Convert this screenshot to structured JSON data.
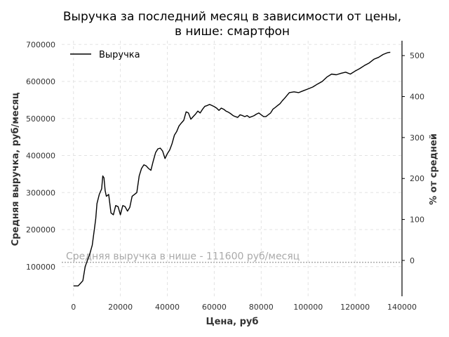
{
  "chart_data": {
    "type": "line",
    "title_line1": "Выручка за последний месяц в зависимости от цены,",
    "title_line2": "в нише: смартфон",
    "xlabel": "Цена, руб",
    "ylabel": "Средняя выручка, руб/месяц",
    "y2label": "% от средней",
    "xlim": [
      -5000,
      140000
    ],
    "ylim": [
      20000,
      710000
    ],
    "y2lim": [
      -87.5,
      536.3
    ],
    "x_ticks": [
      0,
      20000,
      40000,
      60000,
      80000,
      100000,
      120000,
      140000
    ],
    "x_tick_labels": [
      "0",
      "20000",
      "40000",
      "60000",
      "80000",
      "100000",
      "120000",
      "140000"
    ],
    "y_ticks": [
      100000,
      200000,
      300000,
      400000,
      500000,
      600000,
      700000
    ],
    "y_tick_labels": [
      "100000",
      "200000",
      "300000",
      "400000",
      "500000",
      "600000",
      "700000"
    ],
    "y2_ticks": [
      0,
      100,
      200,
      300,
      400,
      500
    ],
    "y2_tick_labels": [
      "0",
      "100",
      "200",
      "300",
      "400",
      "500"
    ],
    "grid": true,
    "legend_position": "top-left",
    "reference_line": {
      "value": 111600,
      "label": "Средняя выручка в нише - 111600 руб/месяц",
      "color": "#aaaaaa"
    },
    "series": [
      {
        "name": "Выручка",
        "color": "#000000",
        "x": [
          0,
          2000,
          3000,
          4000,
          5000,
          6000,
          7000,
          8000,
          9000,
          9500,
          10000,
          11000,
          12000,
          12500,
          13000,
          13500,
          14000,
          15000,
          16000,
          17000,
          18000,
          19000,
          20000,
          21000,
          22000,
          23000,
          24000,
          25000,
          26000,
          27000,
          28000,
          29000,
          30000,
          31000,
          32000,
          33000,
          34000,
          35000,
          36000,
          37000,
          38000,
          39000,
          40000,
          41000,
          42000,
          43000,
          44000,
          45000,
          46000,
          47000,
          48000,
          49000,
          50000,
          51000,
          52000,
          53000,
          54000,
          55000,
          56000,
          57000,
          58000,
          59000,
          60000,
          61000,
          62000,
          63000,
          64000,
          65000,
          66000,
          67000,
          68000,
          69000,
          70000,
          71000,
          72000,
          73000,
          74000,
          75000,
          76000,
          77000,
          78000,
          79000,
          80000,
          81000,
          82000,
          83000,
          84000,
          85000,
          86000,
          87000,
          88000,
          89000,
          90000,
          92000,
          94000,
          96000,
          98000,
          100000,
          102000,
          104000,
          106000,
          108000,
          110000,
          112000,
          114000,
          116000,
          118000,
          120000,
          122000,
          124000,
          126000,
          128000,
          130000,
          132000,
          134000,
          135000
        ],
        "values": [
          48000,
          48000,
          55000,
          62000,
          100000,
          118000,
          135000,
          158000,
          205000,
          230000,
          270000,
          295000,
          310000,
          345000,
          340000,
          305000,
          290000,
          295000,
          245000,
          240000,
          265000,
          262000,
          240000,
          265000,
          262000,
          250000,
          260000,
          290000,
          295000,
          300000,
          345000,
          365000,
          375000,
          372000,
          365000,
          360000,
          385000,
          408000,
          418000,
          420000,
          412000,
          392000,
          405000,
          415000,
          432000,
          455000,
          465000,
          480000,
          488000,
          495000,
          518000,
          515000,
          498000,
          505000,
          512000,
          520000,
          515000,
          525000,
          533000,
          535000,
          538000,
          535000,
          532000,
          528000,
          522000,
          528000,
          525000,
          520000,
          517000,
          513000,
          508000,
          505000,
          503000,
          510000,
          508000,
          505000,
          508000,
          503000,
          505000,
          508000,
          512000,
          515000,
          510000,
          505000,
          505000,
          510000,
          515000,
          525000,
          530000,
          535000,
          540000,
          548000,
          555000,
          570000,
          572000,
          570000,
          575000,
          580000,
          585000,
          593000,
          600000,
          612000,
          620000,
          618000,
          622000,
          625000,
          620000,
          628000,
          635000,
          643000,
          650000,
          660000,
          665000,
          673000,
          678000,
          679000
        ]
      }
    ]
  }
}
